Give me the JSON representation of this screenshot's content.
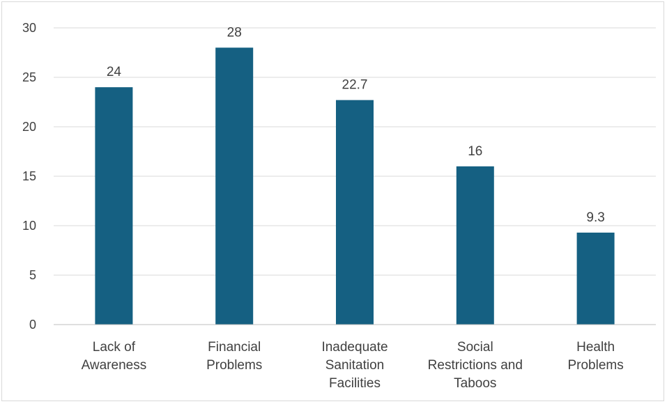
{
  "chart_data": {
    "type": "bar",
    "categories": [
      [
        "Lack of",
        "Awareness"
      ],
      [
        "Financial",
        "Problems"
      ],
      [
        "Inadequate",
        "Sanitation",
        "Facilities"
      ],
      [
        "Social",
        "Restrictions and",
        "Taboos"
      ],
      [
        "Health",
        "Problems"
      ]
    ],
    "values": [
      24,
      28,
      22.7,
      16,
      9.3
    ],
    "value_labels": [
      "24",
      "28",
      "22.7",
      "16",
      "9.3"
    ],
    "title": "",
    "xlabel": "",
    "ylabel": "",
    "ylim": [
      0,
      30
    ],
    "yticks": [
      0,
      5,
      10,
      15,
      20,
      25,
      30
    ],
    "ytick_labels": [
      "0",
      "5",
      "10",
      "15",
      "20",
      "25",
      "30"
    ],
    "grid": true,
    "legend": "none",
    "bar_color": "#156082"
  }
}
